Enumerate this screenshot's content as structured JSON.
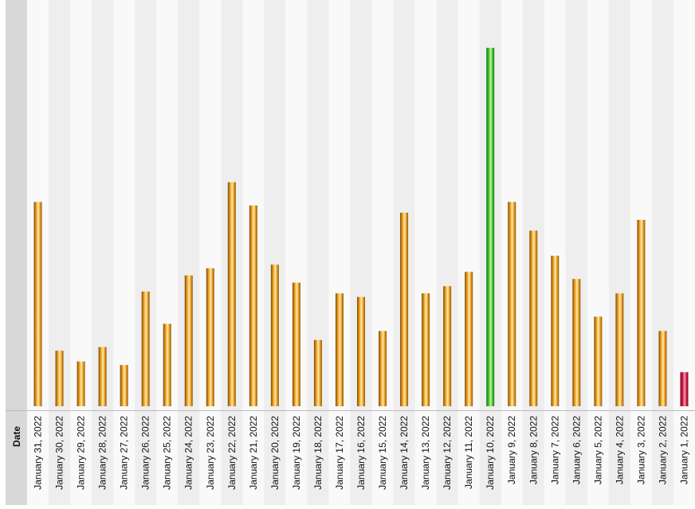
{
  "chart_data": {
    "type": "bar",
    "xlabel": "Date",
    "ylabel": "",
    "ylim": [
      0,
      100
    ],
    "grid": false,
    "legend": "none",
    "categories": [
      "January 31, 2022",
      "January 30, 2022",
      "January 29, 2022",
      "January 28, 2022",
      "January 27, 2022",
      "January 26, 2022",
      "January 25, 2022",
      "January 24, 2022",
      "January 23, 2022",
      "January 22, 2022",
      "January 21, 2022",
      "January 20, 2022",
      "January 19, 2022",
      "January 18, 2022",
      "January 17, 2022",
      "January 16, 2022",
      "January 15, 2022",
      "January 14, 2022",
      "January 13, 2022",
      "January 12, 2022",
      "January 11, 2022",
      "January 10, 2022",
      "January 9, 2022",
      "January 8, 2022",
      "January 7, 2022",
      "January 6, 2022",
      "January 5, 2022",
      "January 4, 2022",
      "January 3, 2022",
      "January 2, 2022",
      "January 1, 2022"
    ],
    "values": [
      57,
      15.5,
      12.5,
      16.5,
      11.5,
      32,
      23,
      36.5,
      38.5,
      62.5,
      56,
      39.5,
      34.5,
      18.5,
      31.5,
      30.5,
      21,
      54,
      31.5,
      33.5,
      37.5,
      100,
      57,
      49,
      42,
      35.5,
      25,
      31.5,
      52,
      21,
      9.5
    ],
    "highlight": {
      "max_color": "#3cc22a",
      "min_color": "#cc1744",
      "default_color": "#f0a020"
    },
    "band_colors": [
      "#f9f9f9",
      "#eeeeee"
    ]
  }
}
